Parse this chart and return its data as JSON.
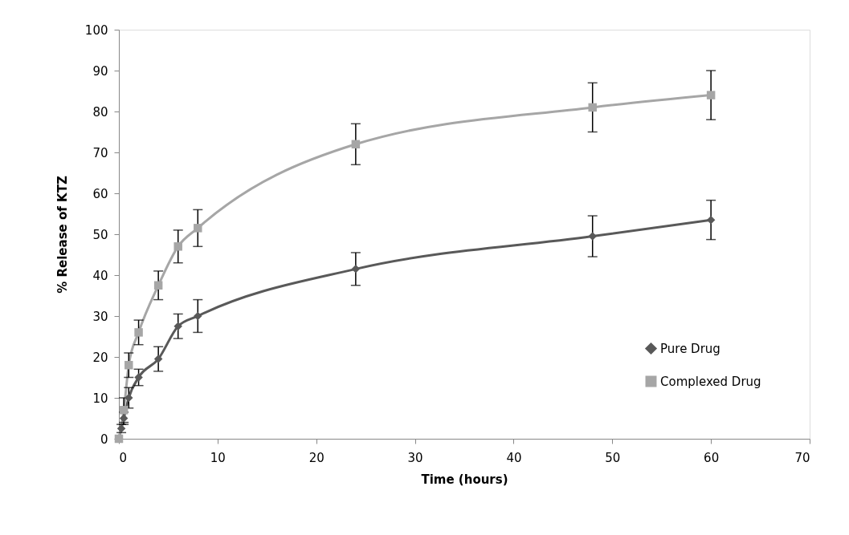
{
  "chart_data": {
    "type": "line",
    "xlabel": "Time (hours)",
    "ylabel": "% Release of KTZ",
    "xlim": [
      0,
      70
    ],
    "xticks": [
      0,
      10,
      20,
      30,
      40,
      50,
      60,
      70
    ],
    "ylim": [
      0,
      100
    ],
    "yticks": [
      0,
      10,
      20,
      30,
      40,
      50,
      60,
      70,
      80,
      90,
      100
    ],
    "grid": false,
    "legend": "bottom right",
    "line_style": "solid",
    "series": [
      {
        "name": "Pure Drug",
        "color": "#595959",
        "marker": "diamond",
        "x": [
          0,
          0.25,
          0.5,
          1,
          2,
          4,
          6,
          8,
          24,
          48,
          60
        ],
        "values": [
          0,
          2.5,
          5,
          10,
          15,
          19.5,
          27.5,
          30,
          41.5,
          49.5,
          53.5
        ],
        "errors": [
          null,
          1,
          1.5,
          2.5,
          2,
          3,
          3,
          4,
          4,
          5,
          4.8
        ]
      },
      {
        "name": "Complexed Drug",
        "color": "#a6a6a6",
        "marker": "square",
        "x": [
          0,
          0.5,
          1,
          2,
          4,
          6,
          8,
          24,
          48,
          60
        ],
        "values": [
          0,
          7,
          18,
          26,
          37.5,
          47,
          51.5,
          72,
          81,
          84
        ],
        "errors": [
          null,
          3,
          3,
          3,
          3.5,
          4,
          4.5,
          5,
          6,
          6
        ]
      }
    ]
  }
}
